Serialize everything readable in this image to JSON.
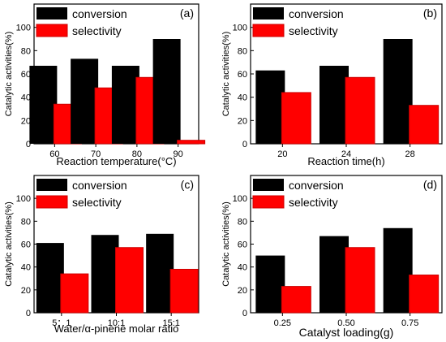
{
  "chart_data": [
    {
      "panel_label": "(a)",
      "type": "bar",
      "categories": [
        "60",
        "70",
        "80",
        "90"
      ],
      "series": [
        {
          "name": "conversion",
          "values": [
            67,
            73,
            67,
            90
          ]
        },
        {
          "name": "selectivity",
          "values": [
            34,
            48,
            57,
            3
          ]
        }
      ],
      "ylim": [
        0,
        120
      ],
      "yticks": [
        "0",
        "20",
        "40",
        "60",
        "80",
        "100"
      ],
      "ylabel": "Catalytic activities(%)",
      "xlabel": "Reaction temperature(°C)",
      "legend": "top-left"
    },
    {
      "panel_label": "(b)",
      "type": "bar",
      "categories": [
        "20",
        "24",
        "28"
      ],
      "series": [
        {
          "name": "conversion",
          "values": [
            63,
            67,
            90
          ]
        },
        {
          "name": "selectivity",
          "values": [
            44,
            57,
            33
          ]
        }
      ],
      "ylim": [
        0,
        120
      ],
      "yticks": [
        "0",
        "20",
        "40",
        "60",
        "80",
        "100"
      ],
      "ylabel": "Catalytic activities(%)",
      "xlabel": "Reaction time(h)",
      "legend": "top-left"
    },
    {
      "panel_label": "(c)",
      "type": "bar",
      "categories": [
        "5：1",
        "10:1",
        "15:1"
      ],
      "series": [
        {
          "name": "conversion",
          "values": [
            61,
            68,
            69
          ]
        },
        {
          "name": "selectivity",
          "values": [
            34,
            57,
            38
          ]
        }
      ],
      "ylim": [
        0,
        120
      ],
      "yticks": [
        "0",
        "20",
        "40",
        "60",
        "80",
        "100"
      ],
      "ylabel": "Catalytic activities(%)",
      "xlabel": "Water/α-pinene molar ratio",
      "legend": "top-left"
    },
    {
      "panel_label": "(d)",
      "type": "bar",
      "categories": [
        "0.25",
        "0.50",
        "0.75"
      ],
      "series": [
        {
          "name": "conversion",
          "values": [
            50,
            67,
            74
          ]
        },
        {
          "name": "selectivity",
          "values": [
            23,
            57,
            33
          ]
        }
      ],
      "ylim": [
        0,
        120
      ],
      "yticks": [
        "0",
        "20",
        "40",
        "60",
        "80",
        "100"
      ],
      "ylabel": "Catalytic activities(%)",
      "xlabel": "Catalyst loading(g)",
      "legend": "top-left"
    }
  ],
  "colors": {
    "conversion": "#000000",
    "selectivity": "#ff0000",
    "selectivity_edge": "#cc0000"
  }
}
